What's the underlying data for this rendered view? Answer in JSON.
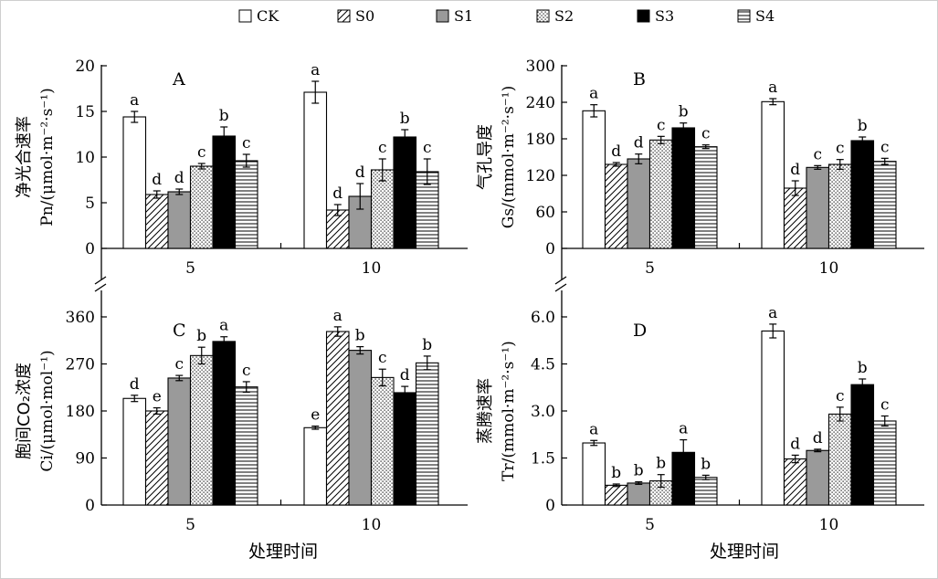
{
  "legend": [
    "CK",
    "S0",
    "S1",
    "S2",
    "S3",
    "S4"
  ],
  "x_common_label": "处理时间",
  "chart_data": [
    {
      "type": "bar",
      "panel": "A",
      "ylabel_line1": "净光合速率",
      "ylabel_line2": "Pn/(μmol·m⁻²·s⁻¹)",
      "categories": [
        "5",
        "10"
      ],
      "ylim": [
        0,
        20
      ],
      "yticks": [
        "0",
        "5",
        "10",
        "15",
        "20"
      ],
      "series": [
        {
          "name": "CK",
          "values": [
            14.4,
            17.1
          ],
          "errors": [
            0.6,
            1.2
          ],
          "letters": [
            "a",
            "a"
          ]
        },
        {
          "name": "S0",
          "values": [
            5.9,
            4.2
          ],
          "errors": [
            0.4,
            0.6
          ],
          "letters": [
            "d",
            "d"
          ]
        },
        {
          "name": "S1",
          "values": [
            6.2,
            5.7
          ],
          "errors": [
            0.3,
            1.4
          ],
          "letters": [
            "d",
            "d"
          ]
        },
        {
          "name": "S2",
          "values": [
            9.0,
            8.6
          ],
          "errors": [
            0.3,
            1.2
          ],
          "letters": [
            "c",
            "c"
          ]
        },
        {
          "name": "S3",
          "values": [
            12.3,
            12.2
          ],
          "errors": [
            1.0,
            0.8
          ],
          "letters": [
            "b",
            "b"
          ]
        },
        {
          "name": "S4",
          "values": [
            9.6,
            8.4
          ],
          "errors": [
            0.7,
            1.4
          ],
          "letters": [
            "c",
            "c"
          ]
        }
      ]
    },
    {
      "type": "bar",
      "panel": "B",
      "ylabel_line1": "气孔导度",
      "ylabel_line2": "Gs/(mmol·m⁻²·s⁻¹)",
      "categories": [
        "5",
        "10"
      ],
      "ylim": [
        0,
        300
      ],
      "yticks": [
        "0",
        "60",
        "120",
        "180",
        "240",
        "300"
      ],
      "series": [
        {
          "name": "CK",
          "values": [
            226,
            241
          ],
          "errors": [
            10,
            5
          ],
          "letters": [
            "a",
            "a"
          ]
        },
        {
          "name": "S0",
          "values": [
            138,
            99
          ],
          "errors": [
            3,
            12
          ],
          "letters": [
            "d",
            "d"
          ]
        },
        {
          "name": "S1",
          "values": [
            147,
            133
          ],
          "errors": [
            8,
            3
          ],
          "letters": [
            "d",
            "c"
          ]
        },
        {
          "name": "S2",
          "values": [
            178,
            138
          ],
          "errors": [
            6,
            8
          ],
          "letters": [
            "c",
            "c"
          ]
        },
        {
          "name": "S3",
          "values": [
            198,
            177
          ],
          "errors": [
            8,
            6
          ],
          "letters": [
            "b",
            "b"
          ]
        },
        {
          "name": "S4",
          "values": [
            167,
            143
          ],
          "errors": [
            3,
            5
          ],
          "letters": [
            "c",
            "c"
          ]
        }
      ]
    },
    {
      "type": "bar",
      "panel": "C",
      "ylabel_line1": "胞间CO₂浓度",
      "ylabel_line2": "Ci/(μmol·mol⁻¹)",
      "categories": [
        "5",
        "10"
      ],
      "ylim": [
        0,
        360
      ],
      "yticks": [
        "0",
        "90",
        "180",
        "270",
        "360"
      ],
      "series": [
        {
          "name": "CK",
          "values": [
            204,
            148
          ],
          "errors": [
            6,
            3
          ],
          "letters": [
            "d",
            "e"
          ]
        },
        {
          "name": "S0",
          "values": [
            180,
            332
          ],
          "errors": [
            6,
            9
          ],
          "letters": [
            "e",
            "a"
          ]
        },
        {
          "name": "S1",
          "values": [
            243,
            296
          ],
          "errors": [
            5,
            7
          ],
          "letters": [
            "c",
            "b"
          ]
        },
        {
          "name": "S2",
          "values": [
            286,
            244
          ],
          "errors": [
            16,
            16
          ],
          "letters": [
            "b",
            "c"
          ]
        },
        {
          "name": "S3",
          "values": [
            313,
            215
          ],
          "errors": [
            9,
            12
          ],
          "letters": [
            "a",
            "d"
          ]
        },
        {
          "name": "S4",
          "values": [
            226,
            272
          ],
          "errors": [
            10,
            13
          ],
          "letters": [
            "c",
            "b"
          ]
        }
      ]
    },
    {
      "type": "bar",
      "panel": "D",
      "ylabel_line1": "蒸腾速率",
      "ylabel_line2": "Tr/(mmol·m⁻²·s⁻¹)",
      "categories": [
        "5",
        "10"
      ],
      "ylim": [
        0,
        6.0
      ],
      "yticks": [
        "0",
        "1.5",
        "3.0",
        "4.5",
        "6.0"
      ],
      "series": [
        {
          "name": "CK",
          "values": [
            1.98,
            5.55
          ],
          "errors": [
            0.08,
            0.22
          ],
          "letters": [
            "a",
            "a"
          ]
        },
        {
          "name": "S0",
          "values": [
            0.63,
            1.47
          ],
          "errors": [
            0.04,
            0.12
          ],
          "letters": [
            "b",
            "d"
          ]
        },
        {
          "name": "S1",
          "values": [
            0.7,
            1.74
          ],
          "errors": [
            0.04,
            0.04
          ],
          "letters": [
            "b",
            "d"
          ]
        },
        {
          "name": "S2",
          "values": [
            0.77,
            2.9
          ],
          "errors": [
            0.2,
            0.22
          ],
          "letters": [
            "b",
            "c"
          ]
        },
        {
          "name": "S3",
          "values": [
            1.68,
            3.84
          ],
          "errors": [
            0.4,
            0.18
          ],
          "letters": [
            "a",
            "b"
          ]
        },
        {
          "name": "S4",
          "values": [
            0.88,
            2.68
          ],
          "errors": [
            0.07,
            0.16
          ],
          "letters": [
            "b",
            "c"
          ]
        }
      ]
    }
  ]
}
